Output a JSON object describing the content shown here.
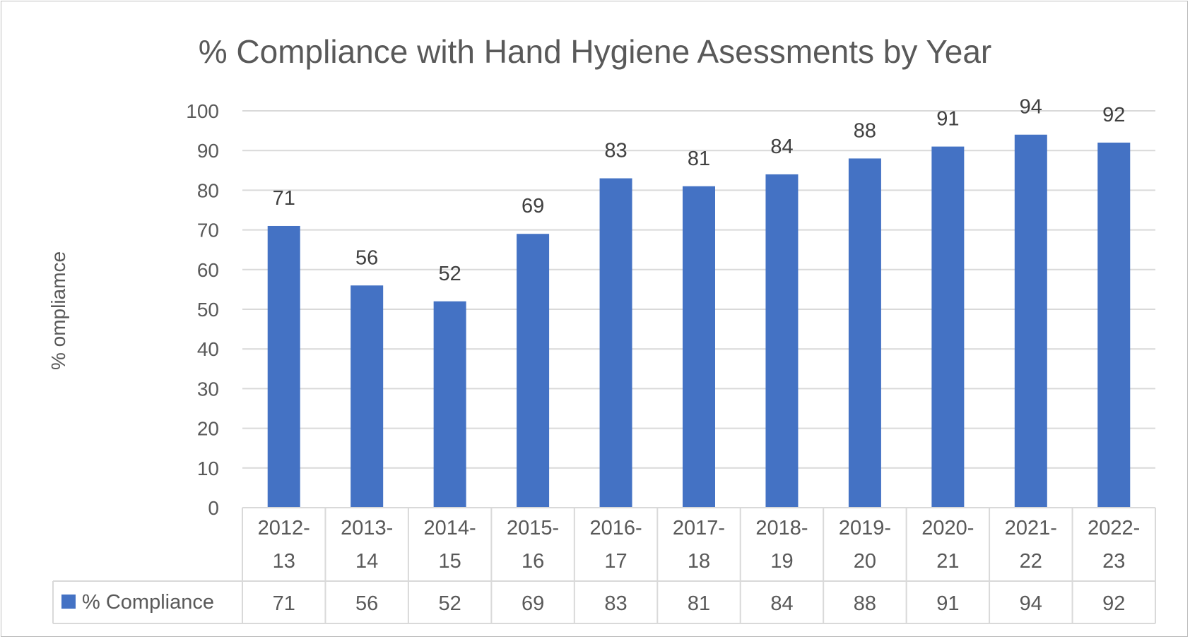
{
  "chart_data": {
    "type": "bar",
    "title": "% Compliance with Hand Hygiene Asessments by Year",
    "ylabel": "% ompliamce",
    "xlabel": "",
    "ylim": [
      0,
      100
    ],
    "yticks": [
      0,
      10,
      20,
      30,
      40,
      50,
      60,
      70,
      80,
      90,
      100
    ],
    "grid": true,
    "categories": [
      [
        "2012-",
        "13"
      ],
      [
        "2013-",
        "14"
      ],
      [
        "2014-",
        "15"
      ],
      [
        "2015-",
        "16"
      ],
      [
        "2016-",
        "17"
      ],
      [
        "2017-",
        "18"
      ],
      [
        "2018-",
        "19"
      ],
      [
        "2019-",
        "20"
      ],
      [
        "2020-",
        "21"
      ],
      [
        "2021-",
        "22"
      ],
      [
        "2022-",
        "23"
      ]
    ],
    "series": [
      {
        "name": "% Compliance",
        "color": "#4472c4",
        "values": [
          71,
          56,
          52,
          69,
          83,
          81,
          84,
          88,
          91,
          94,
          92
        ]
      }
    ],
    "data_table": true
  }
}
